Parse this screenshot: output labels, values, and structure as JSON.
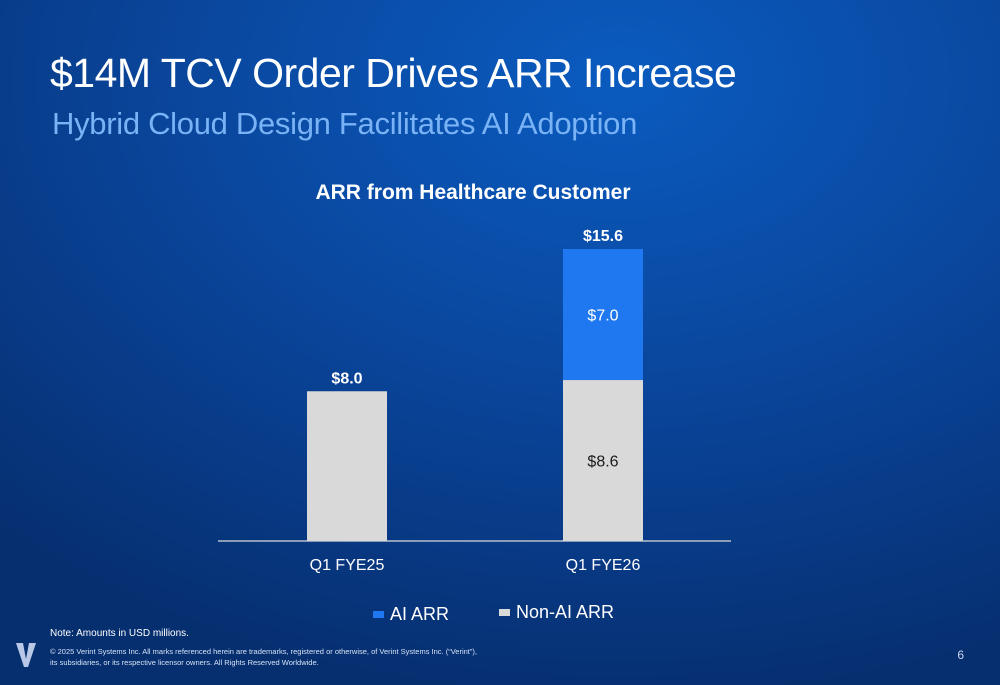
{
  "slide": {
    "title": "$14M TCV Order Drives ARR Increase",
    "subtitle": "Hybrid Cloud Design Facilitates AI Adoption",
    "note": "Note: Amounts in USD millions.",
    "copyright_line1": "© 2025 Verint Systems Inc. All marks referenced herein are trademarks, registered or otherwise, of Verint Systems Inc. (“Verint”),",
    "copyright_line2": "its subsidiaries, or its respective licensor owners. All Rights Reserved Worldwide.",
    "page_number": "6",
    "logo_icon": "verint-v-logo-icon"
  },
  "colors": {
    "ai_arr": "#1f78f0",
    "non_ai_arr": "#d9d9d9",
    "subtitle": "#79b3f5"
  },
  "chart_data": {
    "type": "bar",
    "stacked": true,
    "title": "ARR from Healthcare Customer",
    "categories": [
      "Q1 FYE25",
      "Q1 FYE26"
    ],
    "series": [
      {
        "name": "Non-AI ARR",
        "values": [
          8.0,
          8.6
        ],
        "labels": [
          "",
          "$8.6"
        ],
        "color": "#d9d9d9"
      },
      {
        "name": "AI ARR",
        "values": [
          0,
          7.0
        ],
        "labels": [
          "",
          "$7.0"
        ],
        "color": "#1f78f0"
      }
    ],
    "totals": [
      8.0,
      15.6
    ],
    "total_labels": [
      "$8.0",
      "$15.6"
    ],
    "ylim": [
      0,
      15.6
    ],
    "grid": false,
    "legend": "bottom-center",
    "legend_order": [
      "AI ARR",
      "Non-AI ARR"
    ]
  }
}
